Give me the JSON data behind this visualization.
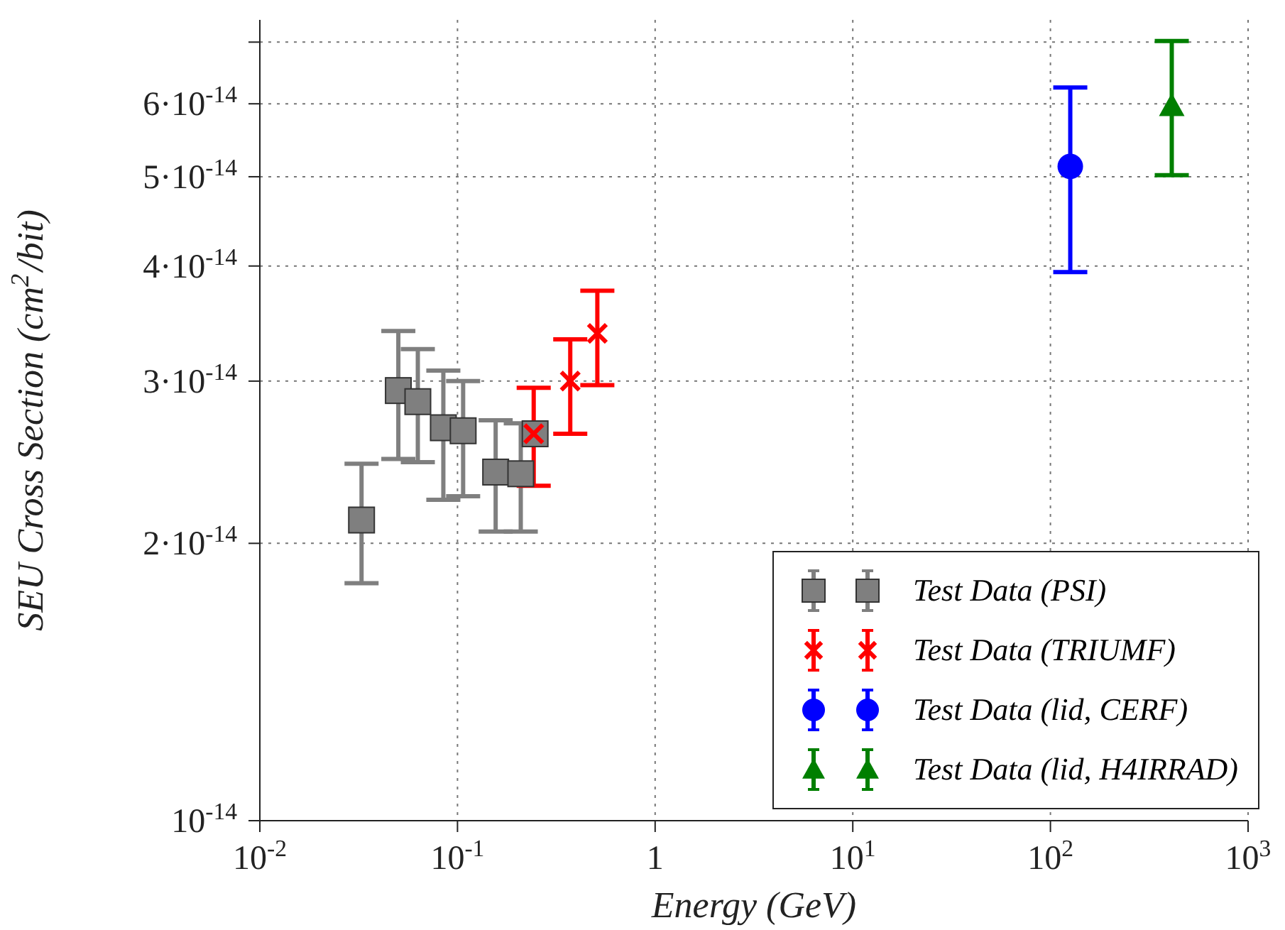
{
  "chart_data": {
    "type": "scatter",
    "xlabel": "Energy (GeV)",
    "ylabel": "SEU Cross Section (cm$^{2}$/bit)",
    "log": "xy",
    "xlim": [
      0.01,
      1000
    ],
    "ylim": [
      1e-14,
      7.4e-14
    ],
    "xticks": [
      {
        "value": 0.01,
        "label": "10$^{-2}$"
      },
      {
        "value": 0.1,
        "label": "10$^{-1}$"
      },
      {
        "value": 1,
        "label": "1"
      },
      {
        "value": 10,
        "label": "10$^{1}$"
      },
      {
        "value": 100,
        "label": "10$^{2}$"
      },
      {
        "value": 1000,
        "label": "10$^{3}$"
      }
    ],
    "yticks": [
      {
        "value": 1e-14,
        "label": "10$^{-14}$"
      },
      {
        "value": 2e-14,
        "label": "2·10$^{-14}$"
      },
      {
        "value": 3e-14,
        "label": "3·10$^{-14}$"
      },
      {
        "value": 4e-14,
        "label": "4·10$^{-14}$"
      },
      {
        "value": 5e-14,
        "label": "5·10$^{-14}$"
      },
      {
        "value": 6e-14,
        "label": "6·10$^{-14}$"
      },
      {
        "value": 7e-14,
        "label": null
      }
    ],
    "grid": true,
    "legend": "bottom right",
    "series": [
      {
        "name": "Test Data (PSI)",
        "color": "#7f7f7f",
        "marker": "square",
        "x": [
          0.0327,
          0.0502,
          0.063,
          0.0848,
          0.1068,
          0.156,
          0.209,
          0.247
        ],
        "values": [
          2.12e-14,
          2.93e-14,
          2.85e-14,
          2.67e-14,
          2.65e-14,
          2.39e-14,
          2.38e-14,
          2.63e-14
        ],
        "errors": [
          [
            1.81e-14,
            2.44e-14
          ],
          [
            2.47e-14,
            3.4e-14
          ],
          [
            2.45e-14,
            3.25e-14
          ],
          [
            2.23e-14,
            3.08e-14
          ],
          [
            2.25e-14,
            3e-14
          ],
          [
            2.06e-14,
            2.72e-14
          ],
          [
            2.06e-14,
            2.7e-14
          ],
          null
        ]
      },
      {
        "name": "Test Data (TRIUMF)",
        "color": "#ff0000",
        "marker": "cross",
        "x": [
          0.243,
          0.372,
          0.51
        ],
        "values": [
          2.63e-14,
          3e-14,
          3.38e-14
        ],
        "errors": [
          [
            2.31e-14,
            2.95e-14
          ],
          [
            2.63e-14,
            3.33e-14
          ],
          [
            2.97e-14,
            3.76e-14
          ]
        ]
      },
      {
        "name": "Test Data (lid, CERF)",
        "color": "#0000ff",
        "marker": "circle",
        "x": [
          126
        ],
        "values": [
          5.13e-14
        ],
        "errors": [
          [
            3.94e-14,
            6.25e-14
          ]
        ]
      },
      {
        "name": "Test Data (lid, H4IRRAD)",
        "color": "#007f00",
        "marker": "triangle",
        "x": [
          411
        ],
        "values": [
          5.97e-14
        ],
        "errors": [
          [
            5.02e-14,
            7.02e-14
          ]
        ]
      }
    ]
  }
}
